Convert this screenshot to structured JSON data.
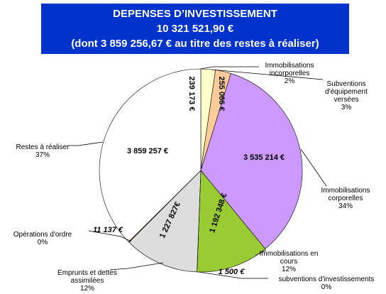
{
  "chart_data": {
    "type": "pie",
    "title": [
      "DEPENSES D’INVESTISSEMENT",
      "10 321 521,90 €",
      "(dont 3 859 256,67 € au titre des restes à réaliser)"
    ],
    "categories": [
      "Immobilisations\nincorporelles",
      "Subventions\nd'équipement\nversées",
      "Immobilisations\ncorporelles",
      "Immobilisations en\ncours",
      "subventions d'investissements",
      "Emprunts et dettes\nassimilées",
      "Opérations d'ordre",
      "Restes à réaliser"
    ],
    "values": [
      239173,
      255066,
      3535214,
      1192348,
      1500,
      1227827,
      11137,
      3859257
    ],
    "value_labels": [
      "239 173 €",
      "255 066 €",
      "3 535 214 €",
      "1 192 348 €",
      "1 500 €",
      "1 227 827€",
      "11 137 €",
      "3 859 257 €"
    ],
    "percent_labels": [
      "2%",
      "3%",
      "34%",
      "12%",
      "0%",
      "12%",
      "0%",
      "37%"
    ],
    "colors": [
      "#ffffcc",
      "#ffcc99",
      "#cc99ff",
      "#99cc33",
      "#ff9900",
      "#dddddd",
      "#ff9933",
      "#ffffff"
    ]
  }
}
